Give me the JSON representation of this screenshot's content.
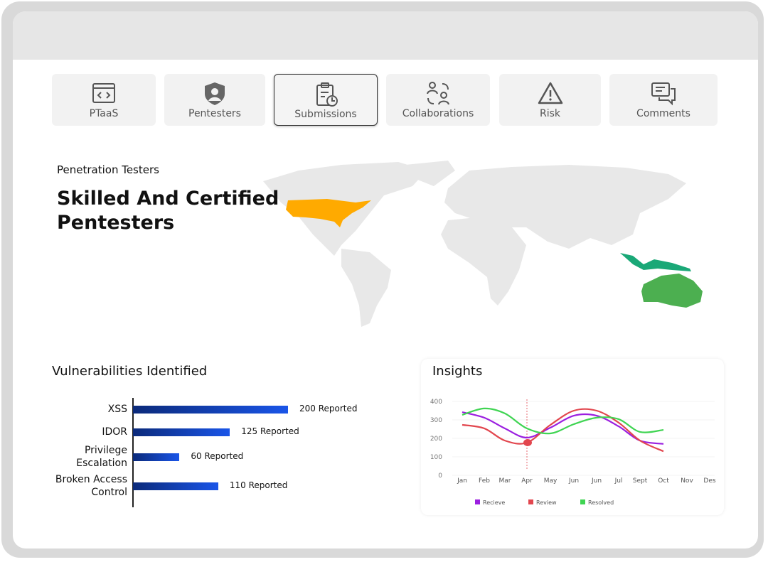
{
  "tabs": [
    "PTaaS",
    "Pentesters",
    "Submissions",
    "Collaborations",
    "Risk",
    "Comments"
  ],
  "hero": {
    "eyebrow": "Penetration Testers",
    "title": "Skilled And Certified Pentesters"
  },
  "chart_data": [
    {
      "type": "hbar",
      "title": "Vulnerabilities Identified",
      "categories": [
        "XSS",
        "IDOR",
        "Privilege Escalation",
        "Broken Access Control"
      ],
      "values": [
        200,
        125,
        60,
        110
      ],
      "value_labels": [
        "200 Reported",
        "125 Reported",
        "60 Reported",
        "110 Reported"
      ],
      "color": "#1a55e8"
    },
    {
      "type": "line",
      "title": "Insights",
      "categories": [
        "Jan",
        "Feb",
        "Mar",
        "Apr",
        "May",
        "Jun",
        "Jun",
        "Jul",
        "Sept",
        "Oct",
        "Nov",
        "Des"
      ],
      "ylim": [
        0,
        400
      ],
      "yticks": [
        0,
        100,
        200,
        300,
        400
      ],
      "series": [
        {
          "name": "Recieve",
          "color": "#9b1fe0",
          "values": [
            342,
            312,
            254,
            204,
            258,
            323,
            323,
            265,
            188,
            170,
            null,
            null
          ]
        },
        {
          "name": "Review",
          "color": "#e2464e",
          "values": [
            273,
            254,
            188,
            177,
            273,
            350,
            350,
            285,
            188,
            130,
            null,
            null
          ]
        },
        {
          "name": "Resolved",
          "color": "#3fd452",
          "values": [
            327,
            362,
            335,
            254,
            227,
            277,
            312,
            304,
            235,
            246,
            null,
            null
          ]
        }
      ]
    }
  ]
}
